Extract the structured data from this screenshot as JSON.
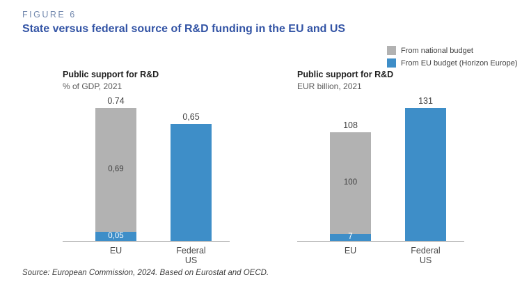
{
  "figure": {
    "kicker": "FIGURE 6",
    "title": "State versus federal source of R&D funding in the EU and US",
    "source": "Source: European Commission, 2024. Based on Eurostat and OECD."
  },
  "colors": {
    "national_budget_gray": "#b2b2b2",
    "eu_budget_blue": "#3e8ec8",
    "figure_title": "#3354a5",
    "kicker": "#7389ae",
    "axis_line": "#9b9b9b"
  },
  "legend": {
    "items": [
      {
        "icon": "gray-swatch",
        "label": "From national budget",
        "color": "#b2b2b2"
      },
      {
        "icon": "blue-swatch",
        "label": "From EU budget (Horizon Europe)",
        "color": "#3e8ec8"
      }
    ]
  },
  "chart_data": [
    {
      "type": "bar",
      "stacked": true,
      "title": "Public support for R&D",
      "subtitle": "% of GDP, 2021",
      "categories": [
        "EU",
        "Federal US"
      ],
      "series": [
        {
          "name": "From national budget",
          "values": [
            0.69,
            0
          ],
          "color": "#b2b2b2"
        },
        {
          "name": "From EU budget (Horizon Europe)",
          "values": [
            0.05,
            0.65
          ],
          "color": "#3e8ec8"
        }
      ],
      "ylim": [
        0,
        0.74
      ],
      "grid": false,
      "legend_position": "top-right",
      "bars": [
        {
          "category": "EU",
          "total_label": "0.74",
          "segments": [
            {
              "series": "From national budget",
              "value": 0.69,
              "label": "0,69",
              "color": "#b2b2b2",
              "label_color": "#3f3f3f"
            },
            {
              "series": "From EU budget (Horizon Europe)",
              "value": 0.05,
              "label": "0,05",
              "color": "#3e8ec8",
              "label_color": "#ffffff"
            }
          ]
        },
        {
          "category": "Federal US",
          "total_label": "0,65",
          "segments": [
            {
              "series": "From EU budget (Horizon Europe)",
              "value": 0.65,
              "label": "",
              "color": "#3e8ec8",
              "label_color": "#ffffff"
            }
          ]
        }
      ]
    },
    {
      "type": "bar",
      "stacked": true,
      "title": "Public support for R&D",
      "subtitle": "EUR billion, 2021",
      "categories": [
        "EU",
        "Federal US"
      ],
      "series": [
        {
          "name": "From national budget",
          "values": [
            100,
            0
          ],
          "color": "#b2b2b2"
        },
        {
          "name": "From EU budget (Horizon Europe)",
          "values": [
            7,
            131
          ],
          "color": "#3e8ec8"
        }
      ],
      "ylim": [
        0,
        131
      ],
      "grid": false,
      "legend_position": "top-right",
      "bars": [
        {
          "category": "EU",
          "total_label": "108",
          "segments": [
            {
              "series": "From national budget",
              "value": 100,
              "label": "100",
              "color": "#b2b2b2",
              "label_color": "#3f3f3f"
            },
            {
              "series": "From EU budget (Horizon Europe)",
              "value": 7,
              "label": "7",
              "color": "#3e8ec8",
              "label_color": "#ffffff"
            }
          ]
        },
        {
          "category": "Federal US",
          "total_label": "131",
          "segments": [
            {
              "series": "From EU budget (Horizon Europe)",
              "value": 131,
              "label": "",
              "color": "#3e8ec8",
              "label_color": "#ffffff"
            }
          ]
        }
      ]
    }
  ]
}
